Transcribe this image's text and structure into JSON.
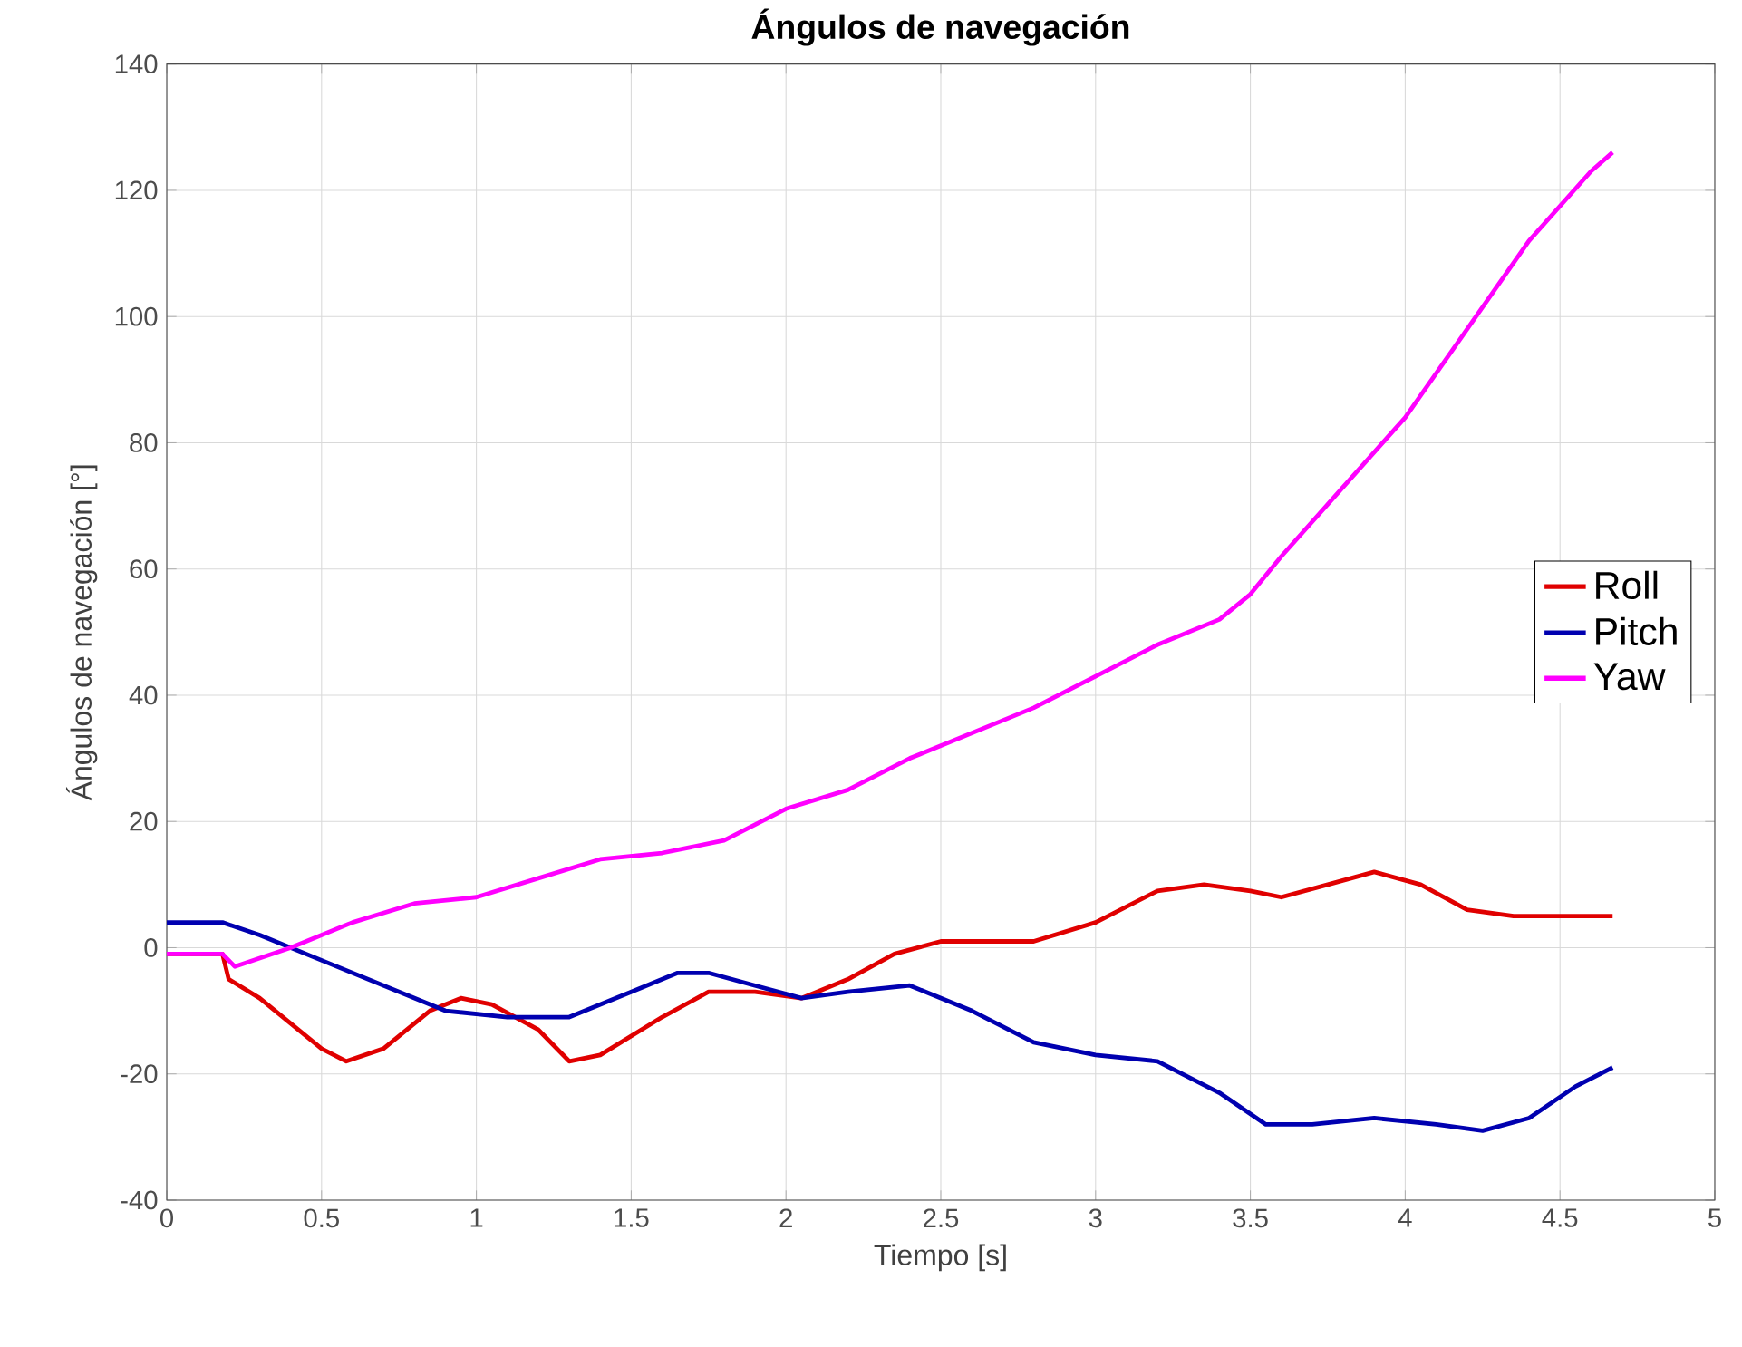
{
  "chart_data": {
    "type": "line",
    "title": "Ángulos de navegación",
    "xlabel": "Tiempo [s]",
    "ylabel": "Ángulos de navegación [°]",
    "xlim": [
      0,
      5
    ],
    "xticks": [
      0,
      0.5,
      1,
      1.5,
      2,
      2.5,
      3,
      3.5,
      4,
      4.5,
      5
    ],
    "ylim": [
      -40,
      140
    ],
    "yticks": [
      -40,
      -20,
      0,
      20,
      40,
      60,
      80,
      100,
      120,
      140
    ],
    "grid": true,
    "legend": "right",
    "marker": "none",
    "line_style": "solid",
    "series": [
      {
        "name": "Roll",
        "color": "#e00000",
        "x": [
          0,
          0.18,
          0.2,
          0.3,
          0.5,
          0.58,
          0.7,
          0.85,
          0.95,
          1.05,
          1.2,
          1.3,
          1.4,
          1.6,
          1.75,
          1.9,
          2.05,
          2.2,
          2.35,
          2.5,
          2.8,
          3.0,
          3.2,
          3.35,
          3.5,
          3.6,
          3.75,
          3.9,
          4.05,
          4.2,
          4.35,
          4.5,
          4.67
        ],
        "values": [
          -1,
          -1,
          -5,
          -8,
          -16,
          -18,
          -16,
          -10,
          -8,
          -9,
          -13,
          -18,
          -17,
          -11,
          -7,
          -7,
          -8,
          -5,
          -1,
          1,
          1,
          4,
          9,
          10,
          9,
          8,
          10,
          12,
          10,
          6,
          5,
          5,
          5
        ]
      },
      {
        "name": "Pitch",
        "color": "#0000b0",
        "x": [
          0,
          0.18,
          0.3,
          0.5,
          0.7,
          0.9,
          1.1,
          1.3,
          1.5,
          1.65,
          1.75,
          1.9,
          2.05,
          2.2,
          2.4,
          2.6,
          2.8,
          3.0,
          3.2,
          3.4,
          3.55,
          3.7,
          3.9,
          4.1,
          4.25,
          4.4,
          4.55,
          4.67
        ],
        "values": [
          4,
          4,
          2,
          -2,
          -6,
          -10,
          -11,
          -11,
          -7,
          -4,
          -4,
          -6,
          -8,
          -7,
          -6,
          -10,
          -15,
          -17,
          -18,
          -23,
          -28,
          -28,
          -27,
          -28,
          -29,
          -27,
          -22,
          -19
        ]
      },
      {
        "name": "Yaw",
        "color": "#ff00ff",
        "x": [
          0,
          0.18,
          0.22,
          0.4,
          0.6,
          0.8,
          1.0,
          1.2,
          1.4,
          1.6,
          1.8,
          2.0,
          2.2,
          2.4,
          2.6,
          2.8,
          3.0,
          3.2,
          3.4,
          3.5,
          3.6,
          3.8,
          4.0,
          4.2,
          4.4,
          4.6,
          4.67
        ],
        "values": [
          -1,
          -1,
          -3,
          0,
          4,
          7,
          8,
          11,
          14,
          15,
          17,
          22,
          25,
          30,
          34,
          38,
          43,
          48,
          52,
          56,
          62,
          73,
          84,
          98,
          112,
          123,
          126
        ]
      }
    ]
  }
}
